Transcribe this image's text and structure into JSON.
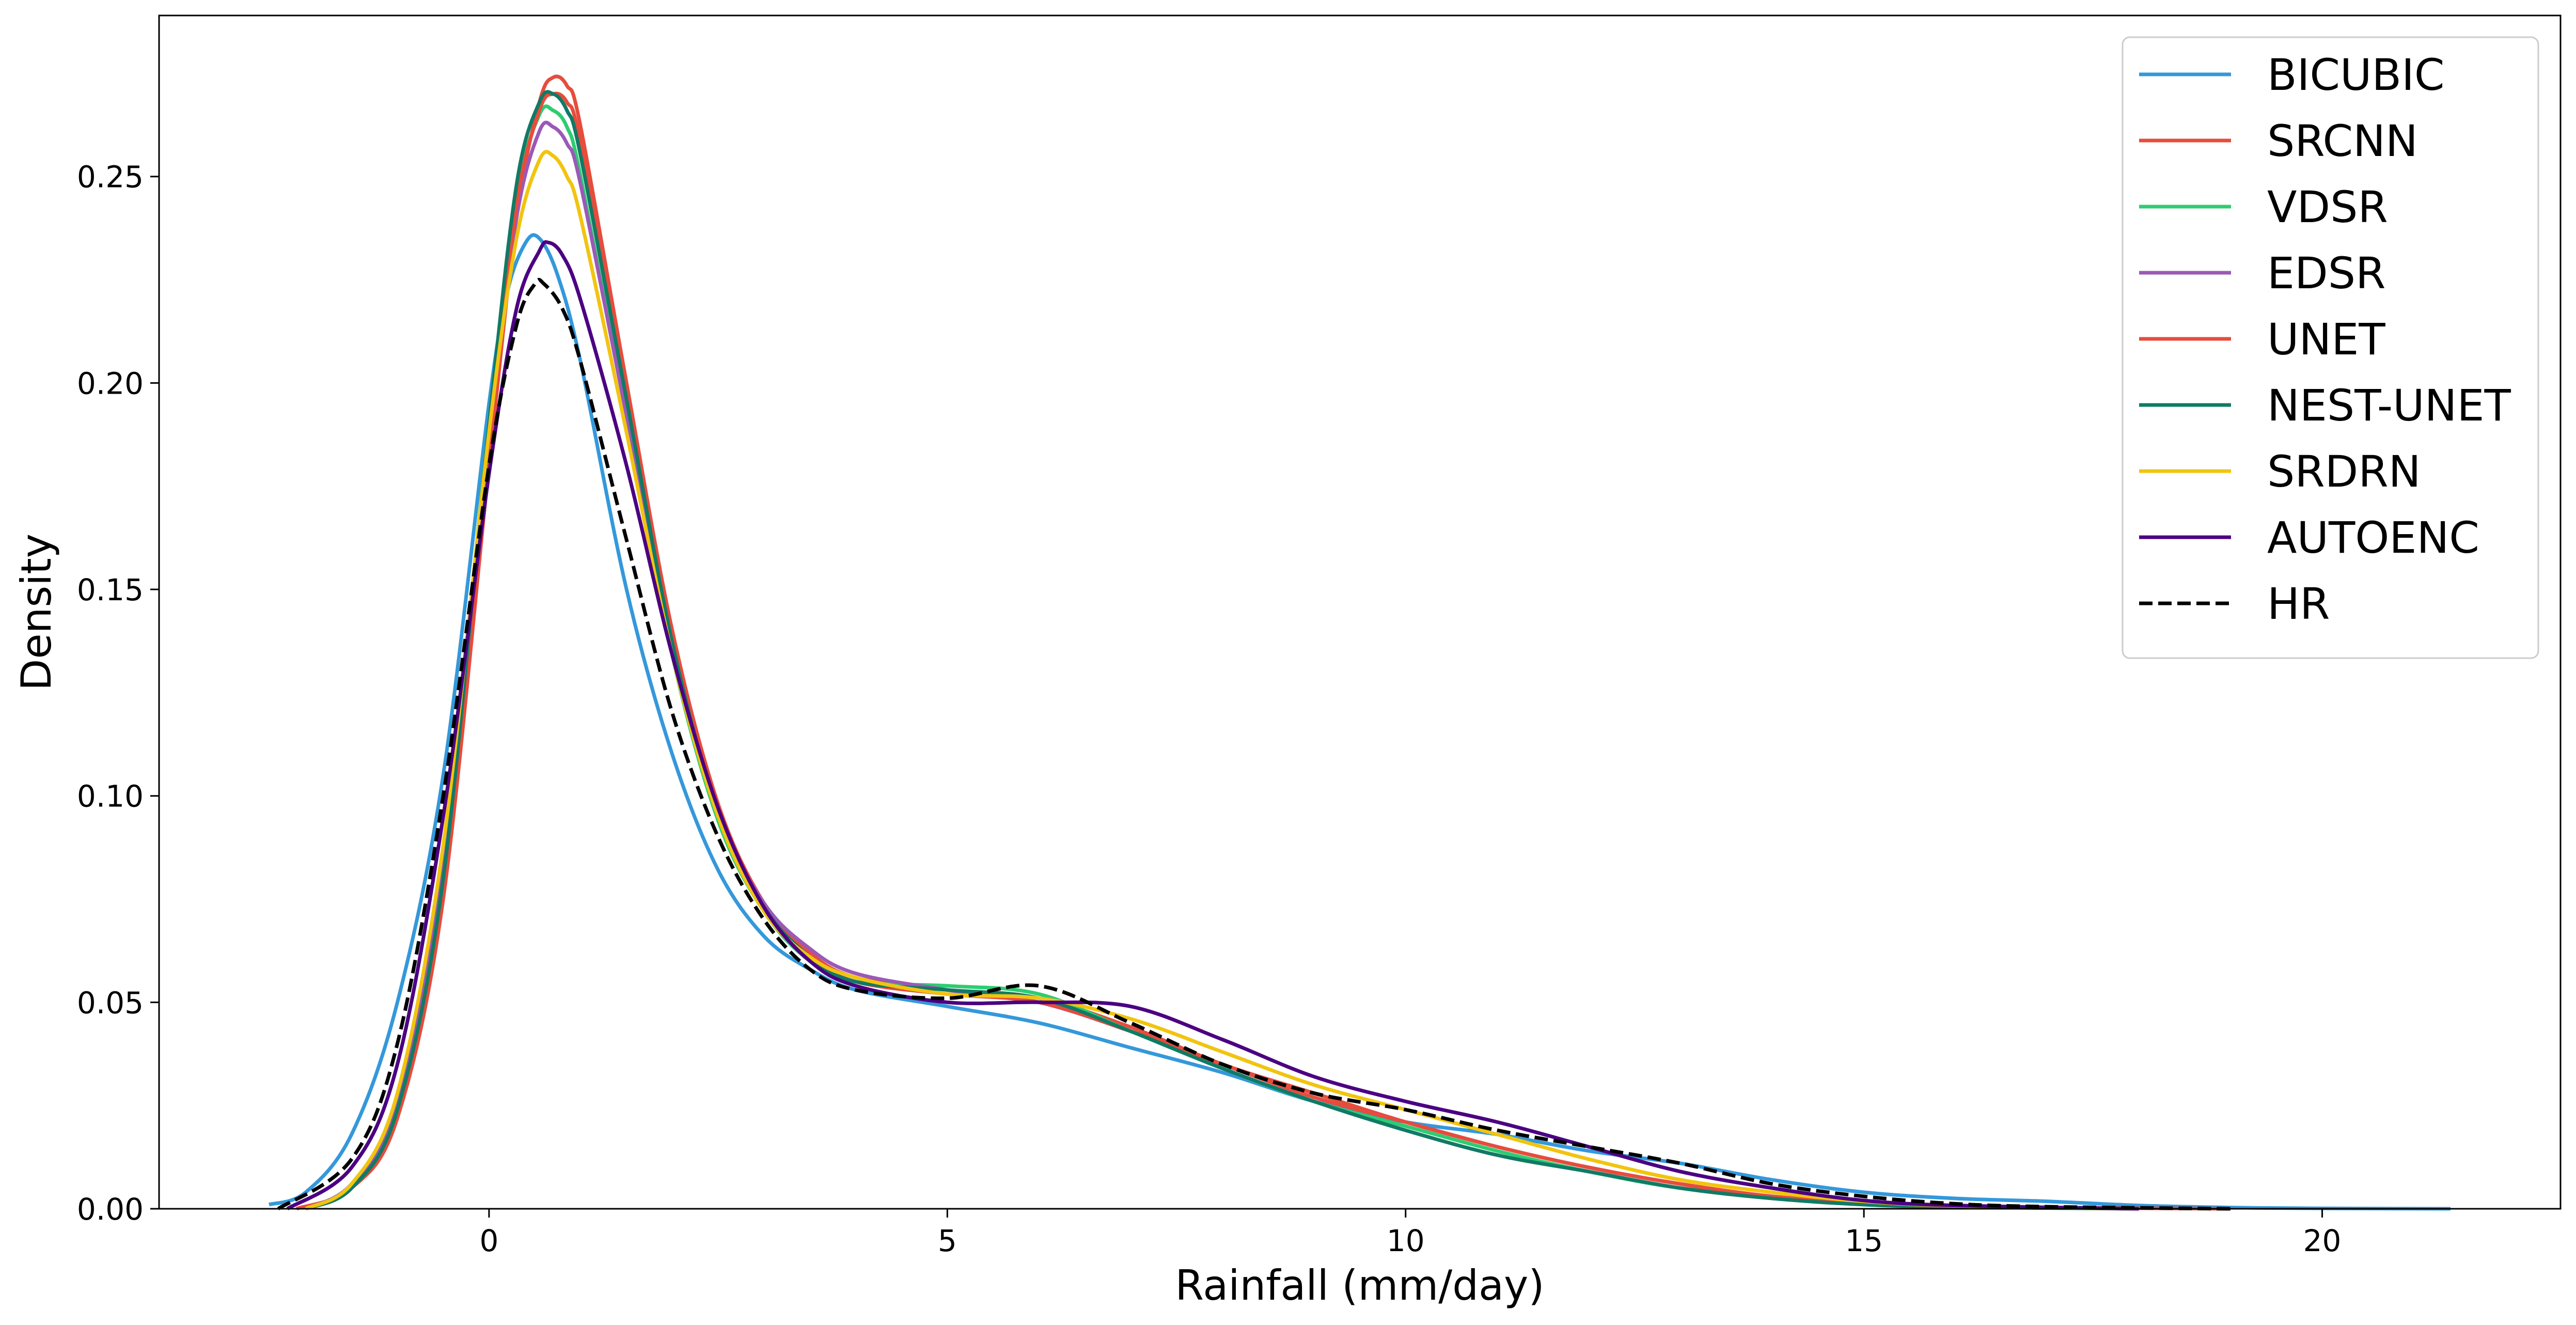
{
  "chart_data": {
    "type": "line",
    "title": "",
    "xlabel": "Rainfall (mm/day)",
    "ylabel": "Density",
    "xlim": [
      -3.6,
      22.6
    ],
    "ylim": [
      0,
      0.289
    ],
    "xticks": [
      0,
      5,
      10,
      15,
      20
    ],
    "xtick_labels": [
      "0",
      "5",
      "10",
      "15",
      "20"
    ],
    "yticks": [
      0,
      0.05,
      0.1,
      0.15,
      0.2,
      0.25
    ],
    "ytick_labels": [
      "0.00",
      "0.05",
      "0.10",
      "0.15",
      "0.20",
      "0.25"
    ],
    "grid": false,
    "legend_position": "top-right",
    "series": [
      {
        "name": "BICUBIC",
        "color": "#3498db",
        "dash": false,
        "points": [
          [
            -2.4,
            0.001
          ],
          [
            -2.0,
            0.004
          ],
          [
            -1.5,
            0.018
          ],
          [
            -1.0,
            0.05
          ],
          [
            -0.5,
            0.105
          ],
          [
            0.0,
            0.195
          ],
          [
            0.2,
            0.222
          ],
          [
            0.4,
            0.234
          ],
          [
            0.55,
            0.235
          ],
          [
            0.75,
            0.226
          ],
          [
            1.0,
            0.205
          ],
          [
            1.5,
            0.15
          ],
          [
            2.0,
            0.11
          ],
          [
            2.5,
            0.082
          ],
          [
            3.0,
            0.066
          ],
          [
            3.5,
            0.058
          ],
          [
            4.0,
            0.053
          ],
          [
            5.0,
            0.049
          ],
          [
            6.0,
            0.045
          ],
          [
            7.0,
            0.039
          ],
          [
            8.0,
            0.033
          ],
          [
            9.0,
            0.026
          ],
          [
            10.0,
            0.021
          ],
          [
            11.0,
            0.018
          ],
          [
            12.0,
            0.014
          ],
          [
            13.0,
            0.011
          ],
          [
            14.0,
            0.007
          ],
          [
            15.0,
            0.004
          ],
          [
            16.0,
            0.0025
          ],
          [
            17.0,
            0.0018
          ],
          [
            18.0,
            0.0008
          ],
          [
            19.0,
            0.0003
          ],
          [
            20.0,
            0.0001
          ],
          [
            21.4,
            0.0
          ]
        ]
      },
      {
        "name": "SRCNN",
        "color": "#e74c3c",
        "dash": false,
        "points": [
          [
            -2.1,
            0.0
          ],
          [
            -1.5,
            0.005
          ],
          [
            -1.0,
            0.022
          ],
          [
            -0.5,
            0.075
          ],
          [
            0.0,
            0.18
          ],
          [
            0.3,
            0.24
          ],
          [
            0.55,
            0.268
          ],
          [
            0.7,
            0.274
          ],
          [
            0.85,
            0.272
          ],
          [
            1.0,
            0.262
          ],
          [
            1.5,
            0.2
          ],
          [
            2.0,
            0.14
          ],
          [
            2.5,
            0.098
          ],
          [
            3.0,
            0.074
          ],
          [
            3.5,
            0.062
          ],
          [
            4.0,
            0.056
          ],
          [
            5.0,
            0.053
          ],
          [
            6.0,
            0.051
          ],
          [
            7.0,
            0.044
          ],
          [
            8.0,
            0.035
          ],
          [
            9.0,
            0.028
          ],
          [
            10.0,
            0.021
          ],
          [
            11.0,
            0.015
          ],
          [
            12.0,
            0.01
          ],
          [
            13.0,
            0.006
          ],
          [
            14.0,
            0.003
          ],
          [
            15.0,
            0.0015
          ],
          [
            16.0,
            0.0007
          ],
          [
            17.0,
            0.0003
          ],
          [
            19.0,
            0.0
          ]
        ]
      },
      {
        "name": "VDSR",
        "color": "#2ecc71",
        "dash": false,
        "points": [
          [
            -2.0,
            0.0
          ],
          [
            -1.5,
            0.006
          ],
          [
            -1.0,
            0.026
          ],
          [
            -0.5,
            0.085
          ],
          [
            0.0,
            0.19
          ],
          [
            0.3,
            0.245
          ],
          [
            0.55,
            0.265
          ],
          [
            0.7,
            0.266
          ],
          [
            0.85,
            0.262
          ],
          [
            1.0,
            0.25
          ],
          [
            1.5,
            0.192
          ],
          [
            2.0,
            0.134
          ],
          [
            2.5,
            0.094
          ],
          [
            3.0,
            0.072
          ],
          [
            3.5,
            0.06
          ],
          [
            4.0,
            0.055
          ],
          [
            5.0,
            0.054
          ],
          [
            6.0,
            0.052
          ],
          [
            7.0,
            0.043
          ],
          [
            8.0,
            0.034
          ],
          [
            9.0,
            0.026
          ],
          [
            10.0,
            0.02
          ],
          [
            11.0,
            0.014
          ],
          [
            12.0,
            0.009
          ],
          [
            13.0,
            0.005
          ],
          [
            14.0,
            0.003
          ],
          [
            15.0,
            0.0012
          ],
          [
            16.0,
            0.0005
          ],
          [
            18.0,
            0.0
          ]
        ]
      },
      {
        "name": "EDSR",
        "color": "#9b59b6",
        "dash": false,
        "points": [
          [
            -2.0,
            0.0
          ],
          [
            -1.5,
            0.006
          ],
          [
            -1.0,
            0.026
          ],
          [
            -0.5,
            0.085
          ],
          [
            0.0,
            0.188
          ],
          [
            0.3,
            0.24
          ],
          [
            0.55,
            0.261
          ],
          [
            0.7,
            0.262
          ],
          [
            0.85,
            0.258
          ],
          [
            1.0,
            0.248
          ],
          [
            1.5,
            0.192
          ],
          [
            2.0,
            0.136
          ],
          [
            2.5,
            0.096
          ],
          [
            3.0,
            0.074
          ],
          [
            3.5,
            0.063
          ],
          [
            4.0,
            0.057
          ],
          [
            5.0,
            0.053
          ],
          [
            6.0,
            0.05
          ],
          [
            7.0,
            0.043
          ],
          [
            8.0,
            0.035
          ],
          [
            9.0,
            0.027
          ],
          [
            10.0,
            0.021
          ],
          [
            11.0,
            0.015
          ],
          [
            12.0,
            0.01
          ],
          [
            13.0,
            0.006
          ],
          [
            14.0,
            0.003
          ],
          [
            15.0,
            0.0014
          ],
          [
            16.0,
            0.0006
          ],
          [
            18.0,
            0.0
          ]
        ]
      },
      {
        "name": "UNET",
        "color": "#e74c3c",
        "dash": false,
        "points": [
          [
            -2.0,
            0.0
          ],
          [
            -1.5,
            0.005
          ],
          [
            -1.0,
            0.024
          ],
          [
            -0.5,
            0.08
          ],
          [
            0.0,
            0.186
          ],
          [
            0.3,
            0.243
          ],
          [
            0.55,
            0.266
          ],
          [
            0.7,
            0.27
          ],
          [
            0.85,
            0.268
          ],
          [
            1.0,
            0.258
          ],
          [
            1.5,
            0.198
          ],
          [
            2.0,
            0.139
          ],
          [
            2.5,
            0.097
          ],
          [
            3.0,
            0.073
          ],
          [
            3.5,
            0.061
          ],
          [
            4.0,
            0.055
          ],
          [
            5.0,
            0.052
          ],
          [
            6.0,
            0.05
          ],
          [
            7.0,
            0.043
          ],
          [
            8.0,
            0.035
          ],
          [
            9.0,
            0.027
          ],
          [
            10.0,
            0.021
          ],
          [
            11.0,
            0.015
          ],
          [
            12.0,
            0.01
          ],
          [
            13.0,
            0.006
          ],
          [
            14.0,
            0.003
          ],
          [
            15.0,
            0.0014
          ],
          [
            16.0,
            0.0006
          ],
          [
            18.0,
            0.0
          ]
        ]
      },
      {
        "name": "NEST-UNET",
        "color": "#117a65",
        "dash": false,
        "points": [
          [
            -2.0,
            0.0
          ],
          [
            -1.5,
            0.005
          ],
          [
            -1.0,
            0.024
          ],
          [
            -0.5,
            0.08
          ],
          [
            0.0,
            0.19
          ],
          [
            0.3,
            0.248
          ],
          [
            0.55,
            0.268
          ],
          [
            0.7,
            0.27
          ],
          [
            0.85,
            0.266
          ],
          [
            1.0,
            0.255
          ],
          [
            1.5,
            0.196
          ],
          [
            2.0,
            0.137
          ],
          [
            2.5,
            0.096
          ],
          [
            3.0,
            0.073
          ],
          [
            3.5,
            0.061
          ],
          [
            4.0,
            0.055
          ],
          [
            5.0,
            0.053
          ],
          [
            6.0,
            0.051
          ],
          [
            7.0,
            0.043
          ],
          [
            8.0,
            0.034
          ],
          [
            9.0,
            0.026
          ],
          [
            10.0,
            0.019
          ],
          [
            11.0,
            0.013
          ],
          [
            12.0,
            0.009
          ],
          [
            13.0,
            0.005
          ],
          [
            14.0,
            0.0025
          ],
          [
            15.0,
            0.001
          ],
          [
            16.0,
            0.0004
          ],
          [
            18.0,
            0.0
          ]
        ]
      },
      {
        "name": "SRDRN",
        "color": "#f1c40f",
        "dash": false,
        "points": [
          [
            -2.0,
            0.0
          ],
          [
            -1.5,
            0.006
          ],
          [
            -1.0,
            0.028
          ],
          [
            -0.5,
            0.088
          ],
          [
            0.0,
            0.188
          ],
          [
            0.3,
            0.235
          ],
          [
            0.55,
            0.254
          ],
          [
            0.7,
            0.255
          ],
          [
            0.85,
            0.25
          ],
          [
            1.0,
            0.24
          ],
          [
            1.5,
            0.188
          ],
          [
            2.0,
            0.134
          ],
          [
            2.5,
            0.095
          ],
          [
            3.0,
            0.072
          ],
          [
            3.5,
            0.061
          ],
          [
            4.0,
            0.056
          ],
          [
            5.0,
            0.052
          ],
          [
            6.0,
            0.051
          ],
          [
            7.0,
            0.046
          ],
          [
            8.0,
            0.038
          ],
          [
            9.0,
            0.03
          ],
          [
            10.0,
            0.024
          ],
          [
            11.0,
            0.018
          ],
          [
            12.0,
            0.012
          ],
          [
            13.0,
            0.007
          ],
          [
            14.0,
            0.004
          ],
          [
            15.0,
            0.0018
          ],
          [
            16.0,
            0.0007
          ],
          [
            18.0,
            0.0
          ]
        ]
      },
      {
        "name": "AUTOENC",
        "color": "#4b0082",
        "dash": false,
        "points": [
          [
            -2.2,
            0.0
          ],
          [
            -1.5,
            0.01
          ],
          [
            -1.0,
            0.035
          ],
          [
            -0.5,
            0.095
          ],
          [
            0.0,
            0.178
          ],
          [
            0.3,
            0.218
          ],
          [
            0.55,
            0.232
          ],
          [
            0.65,
            0.234
          ],
          [
            0.8,
            0.231
          ],
          [
            1.0,
            0.22
          ],
          [
            1.5,
            0.18
          ],
          [
            2.0,
            0.134
          ],
          [
            2.5,
            0.097
          ],
          [
            3.0,
            0.073
          ],
          [
            3.5,
            0.06
          ],
          [
            4.0,
            0.054
          ],
          [
            5.0,
            0.05
          ],
          [
            6.0,
            0.05
          ],
          [
            7.0,
            0.049
          ],
          [
            8.0,
            0.041
          ],
          [
            9.0,
            0.032
          ],
          [
            10.0,
            0.026
          ],
          [
            11.0,
            0.021
          ],
          [
            12.0,
            0.015
          ],
          [
            13.0,
            0.009
          ],
          [
            14.0,
            0.005
          ],
          [
            15.0,
            0.002
          ],
          [
            16.0,
            0.0008
          ],
          [
            18.0,
            0.0
          ]
        ]
      },
      {
        "name": "HR",
        "color": "#000000",
        "dash": true,
        "points": [
          [
            -2.3,
            0.0
          ],
          [
            -1.5,
            0.012
          ],
          [
            -1.0,
            0.04
          ],
          [
            -0.5,
            0.1
          ],
          [
            0.0,
            0.18
          ],
          [
            0.3,
            0.214
          ],
          [
            0.5,
            0.224
          ],
          [
            0.6,
            0.224
          ],
          [
            0.8,
            0.218
          ],
          [
            1.0,
            0.205
          ],
          [
            1.5,
            0.162
          ],
          [
            2.0,
            0.12
          ],
          [
            2.5,
            0.09
          ],
          [
            3.0,
            0.07
          ],
          [
            3.5,
            0.058
          ],
          [
            4.0,
            0.053
          ],
          [
            5.0,
            0.051
          ],
          [
            6.0,
            0.054
          ],
          [
            7.0,
            0.045
          ],
          [
            8.0,
            0.035
          ],
          [
            9.0,
            0.028
          ],
          [
            10.0,
            0.024
          ],
          [
            11.0,
            0.019
          ],
          [
            12.0,
            0.015
          ],
          [
            13.0,
            0.011
          ],
          [
            14.0,
            0.006
          ],
          [
            15.0,
            0.003
          ],
          [
            16.0,
            0.0012
          ],
          [
            17.0,
            0.0005
          ],
          [
            19.0,
            0.0
          ]
        ]
      }
    ]
  }
}
